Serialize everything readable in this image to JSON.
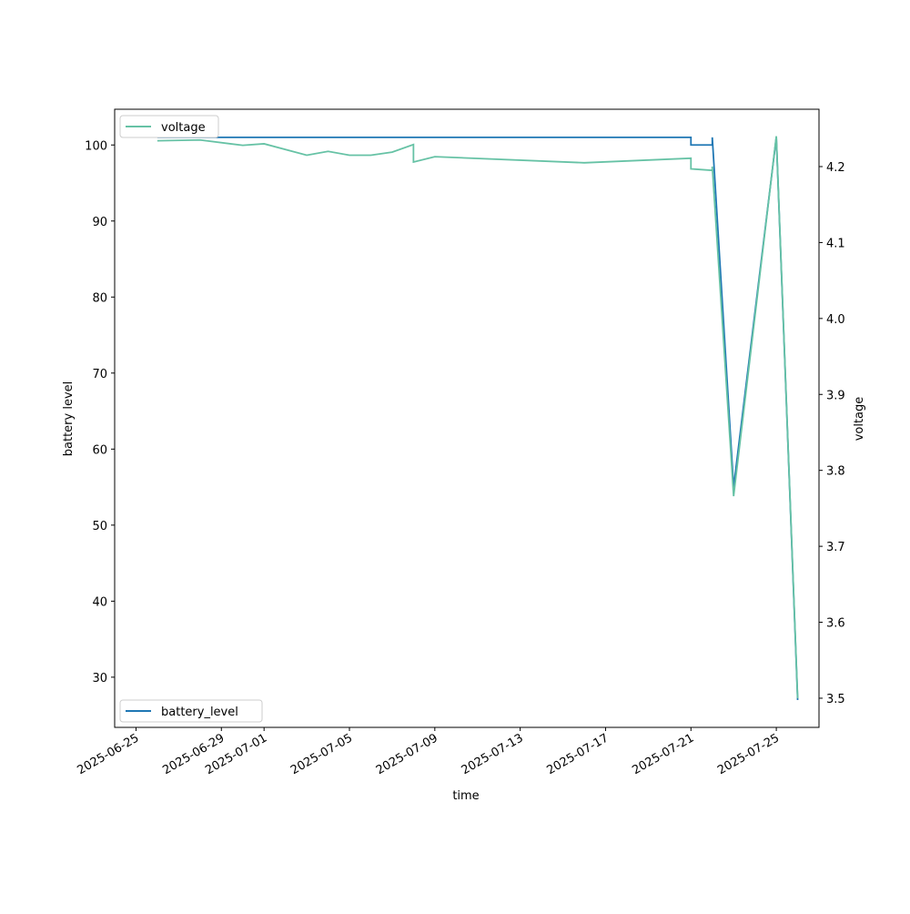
{
  "chart_data": {
    "type": "line",
    "x_label": "time",
    "y_label": "battery level",
    "y2_label": "voltage",
    "x": [
      "2025-06-26",
      "2025-06-28",
      "2025-06-30",
      "2025-07-01",
      "2025-07-03",
      "2025-07-04",
      "2025-07-05",
      "2025-07-06",
      "2025-07-07",
      "2025-07-08",
      "2025-07-08",
      "2025-07-09",
      "2025-07-16",
      "2025-07-21",
      "2025-07-21",
      "2025-07-22",
      "2025-07-22",
      "2025-07-23",
      "2025-07-25",
      "2025-07-26"
    ],
    "series": [
      {
        "name": "battery_level",
        "color": "#1f77b4",
        "axis": "y",
        "legend": "lower left",
        "values": [
          101,
          101,
          101,
          101,
          101,
          101,
          101,
          101,
          101,
          101,
          101,
          101,
          101,
          101,
          100,
          100,
          101,
          55,
          101,
          27
        ]
      },
      {
        "name": "voltage",
        "color": "#66c2a5",
        "axis": "y2",
        "legend": "upper left",
        "values": [
          4.234,
          4.235,
          4.228,
          4.23,
          4.215,
          4.22,
          4.215,
          4.215,
          4.219,
          4.229,
          4.206,
          4.213,
          4.205,
          4.211,
          4.197,
          4.195,
          4.2,
          3.766,
          4.24,
          3.5
        ]
      }
    ],
    "xlim": [
      "2025-06-24",
      "2025-07-27"
    ],
    "xticks": [
      "2025-06-25",
      "2025-06-29",
      "2025-07-01",
      "2025-07-05",
      "2025-07-09",
      "2025-07-13",
      "2025-07-17",
      "2025-07-21",
      "2025-07-25"
    ],
    "ylim": [
      23.4,
      104.7
    ],
    "yticks": [
      30,
      40,
      50,
      60,
      70,
      80,
      90,
      100
    ],
    "y2lim": [
      3.4616,
      4.2755
    ],
    "y2ticks": [
      3.5,
      3.6,
      3.7,
      3.8,
      3.9,
      {
        "value": 4,
        "label": "4.0"
      },
      4.1,
      4.2
    ]
  }
}
